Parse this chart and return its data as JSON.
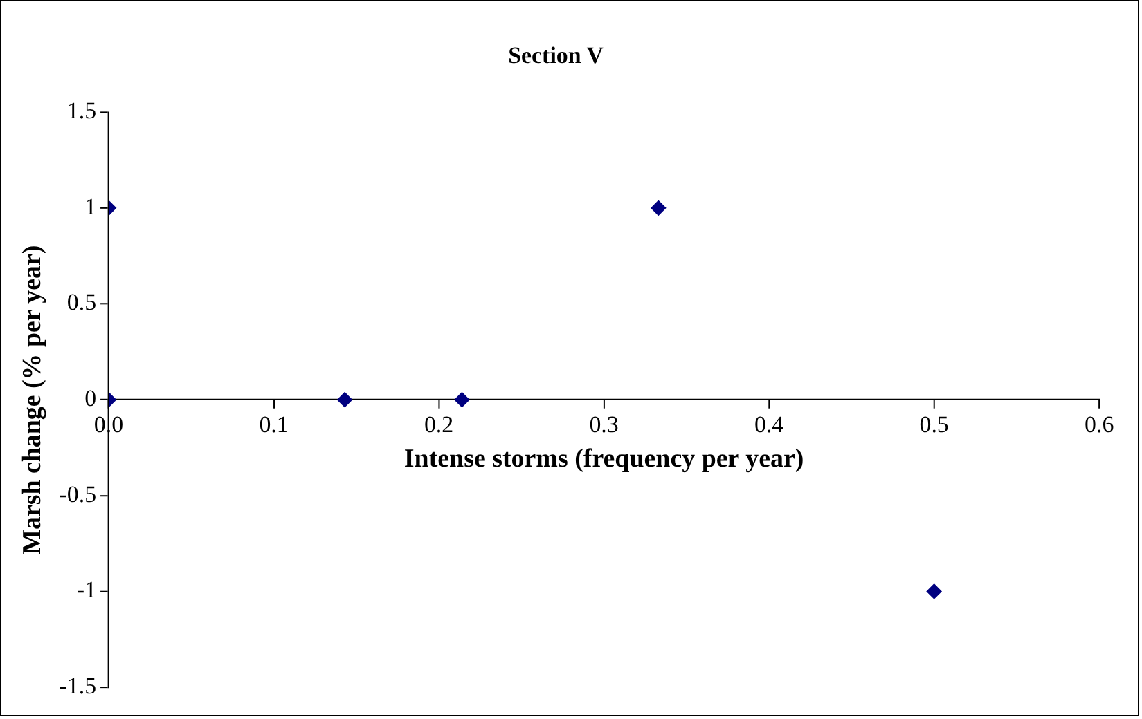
{
  "chart_data": {
    "type": "scatter",
    "title": "Section V",
    "xlabel": "Intense storms (frequency per year)",
    "ylabel": "Marsh change (% per year)",
    "x": [
      0,
      0,
      0.143,
      0.214,
      0.333,
      0.5
    ],
    "series": [
      {
        "color": "#000080",
        "values": [
          1,
          0,
          0,
          0,
          1,
          -1
        ]
      }
    ],
    "xlim": [
      0,
      0.6
    ],
    "xticks": [
      {
        "value": 0,
        "label": "0.0"
      },
      0.1,
      0.2,
      0.3,
      0.4,
      0.5,
      0.6
    ],
    "ylim": [
      -1.5,
      1.5
    ],
    "yticks": [
      -1.5,
      -1,
      -0.5,
      0,
      0.5,
      1,
      1.5
    ],
    "grid": false,
    "legend": false,
    "marker": "diamond"
  }
}
